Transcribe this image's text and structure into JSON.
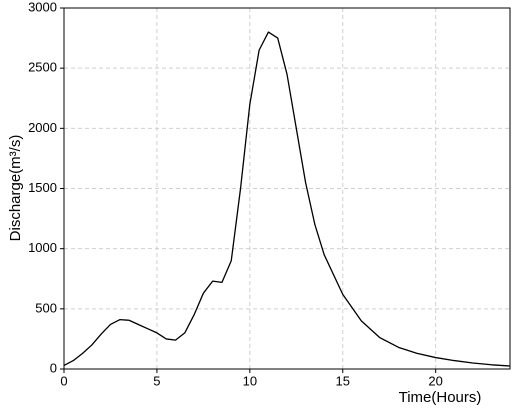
{
  "chart_data": {
    "type": "line",
    "x_label": "Time(Hours)",
    "y_label": "Discharge(m³/s)",
    "xlim": [
      0,
      24
    ],
    "xticks": [
      0,
      5,
      10,
      15,
      20
    ],
    "ylim": [
      0,
      3000
    ],
    "yticks": [
      0,
      500,
      1000,
      1500,
      2000,
      2500,
      3000
    ],
    "grid": true,
    "series": [
      {
        "color": "#000000",
        "x": [
          0,
          0.5,
          1,
          1.5,
          2,
          2.5,
          3,
          3.5,
          4,
          4.5,
          5,
          5.5,
          6,
          6.5,
          7,
          7.5,
          8,
          8.5,
          9,
          9.5,
          10,
          10.5,
          11,
          11.5,
          12,
          12.5,
          13,
          13.5,
          14,
          15,
          16,
          17,
          18,
          19,
          20,
          21,
          22,
          23,
          24
        ],
        "values": [
          30,
          70,
          130,
          200,
          290,
          370,
          410,
          405,
          370,
          335,
          300,
          250,
          240,
          300,
          450,
          630,
          730,
          720,
          900,
          1500,
          2200,
          2650,
          2800,
          2750,
          2450,
          2000,
          1550,
          1200,
          950,
          620,
          400,
          260,
          180,
          130,
          95,
          70,
          50,
          35,
          25
        ]
      }
    ]
  }
}
